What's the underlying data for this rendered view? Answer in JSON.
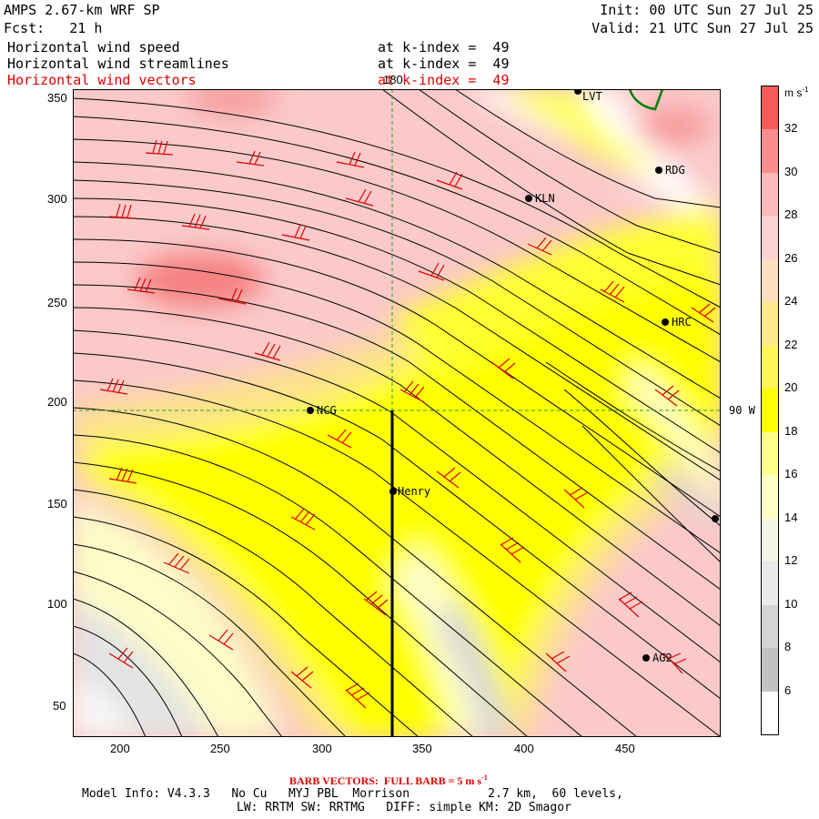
{
  "header": {
    "model": "AMPS 2.67-km WRF SP",
    "fcst": "Fcst:   21 h",
    "init": "Init: 00 UTC Sun 27 Jul 25",
    "valid": "Valid: 21 UTC Sun 27 Jul 25",
    "fields": [
      {
        "name": "Horizontal wind speed",
        "level": "at k-index =  49",
        "color": "#000000"
      },
      {
        "name": "Horizontal wind streamlines",
        "level": "at k-index =  49",
        "color": "#000000"
      },
      {
        "name": "Horizontal wind vectors",
        "level": "at k-index =  49",
        "color": "#e00000"
      }
    ]
  },
  "axes": {
    "x_ticks": [
      "200",
      "250",
      "300",
      "350",
      "400",
      "450"
    ],
    "y_ticks": [
      "350",
      "300",
      "250",
      "200",
      "150",
      "100",
      "50"
    ],
    "lon_label_top": "180",
    "lat_label_right": "90 W"
  },
  "colorbar": {
    "unit": "m s",
    "unit_sup": "-1",
    "labels": [
      "32",
      "30",
      "28",
      "26",
      "24",
      "22",
      "20",
      "18",
      "16",
      "14",
      "12",
      "10",
      "8",
      "6"
    ],
    "colors": [
      "#f65a5a",
      "#f98d8d",
      "#fbb9b9",
      "#fcd1d1",
      "#fde0c0",
      "#ffe88a",
      "#fff55a",
      "#ffff00",
      "#fdfd8a",
      "#fefdc4",
      "#f5f5e6",
      "#e9e9e9",
      "#d4d4d4",
      "#c2c2c2",
      "#ffffff"
    ]
  },
  "stations": [
    {
      "name": "LVT"
    },
    {
      "name": "RDG"
    },
    {
      "name": "KLN"
    },
    {
      "name": "HRC"
    },
    {
      "name": "NCG"
    },
    {
      "name": "Henry"
    },
    {
      "name": "AG2"
    }
  ],
  "footer": {
    "barb_prefix": "BARB VECTORS:  FULL BARB = 5 m s",
    "barb_sup": "-1",
    "model_info": "Model Info: V4.3.3   No Cu   MYJ PBL  Morrison           2.7 km,  60 levels,",
    "physics": "LW: RRTM SW: RRTMG   DIFF: simple KM: 2D Smagor"
  }
}
